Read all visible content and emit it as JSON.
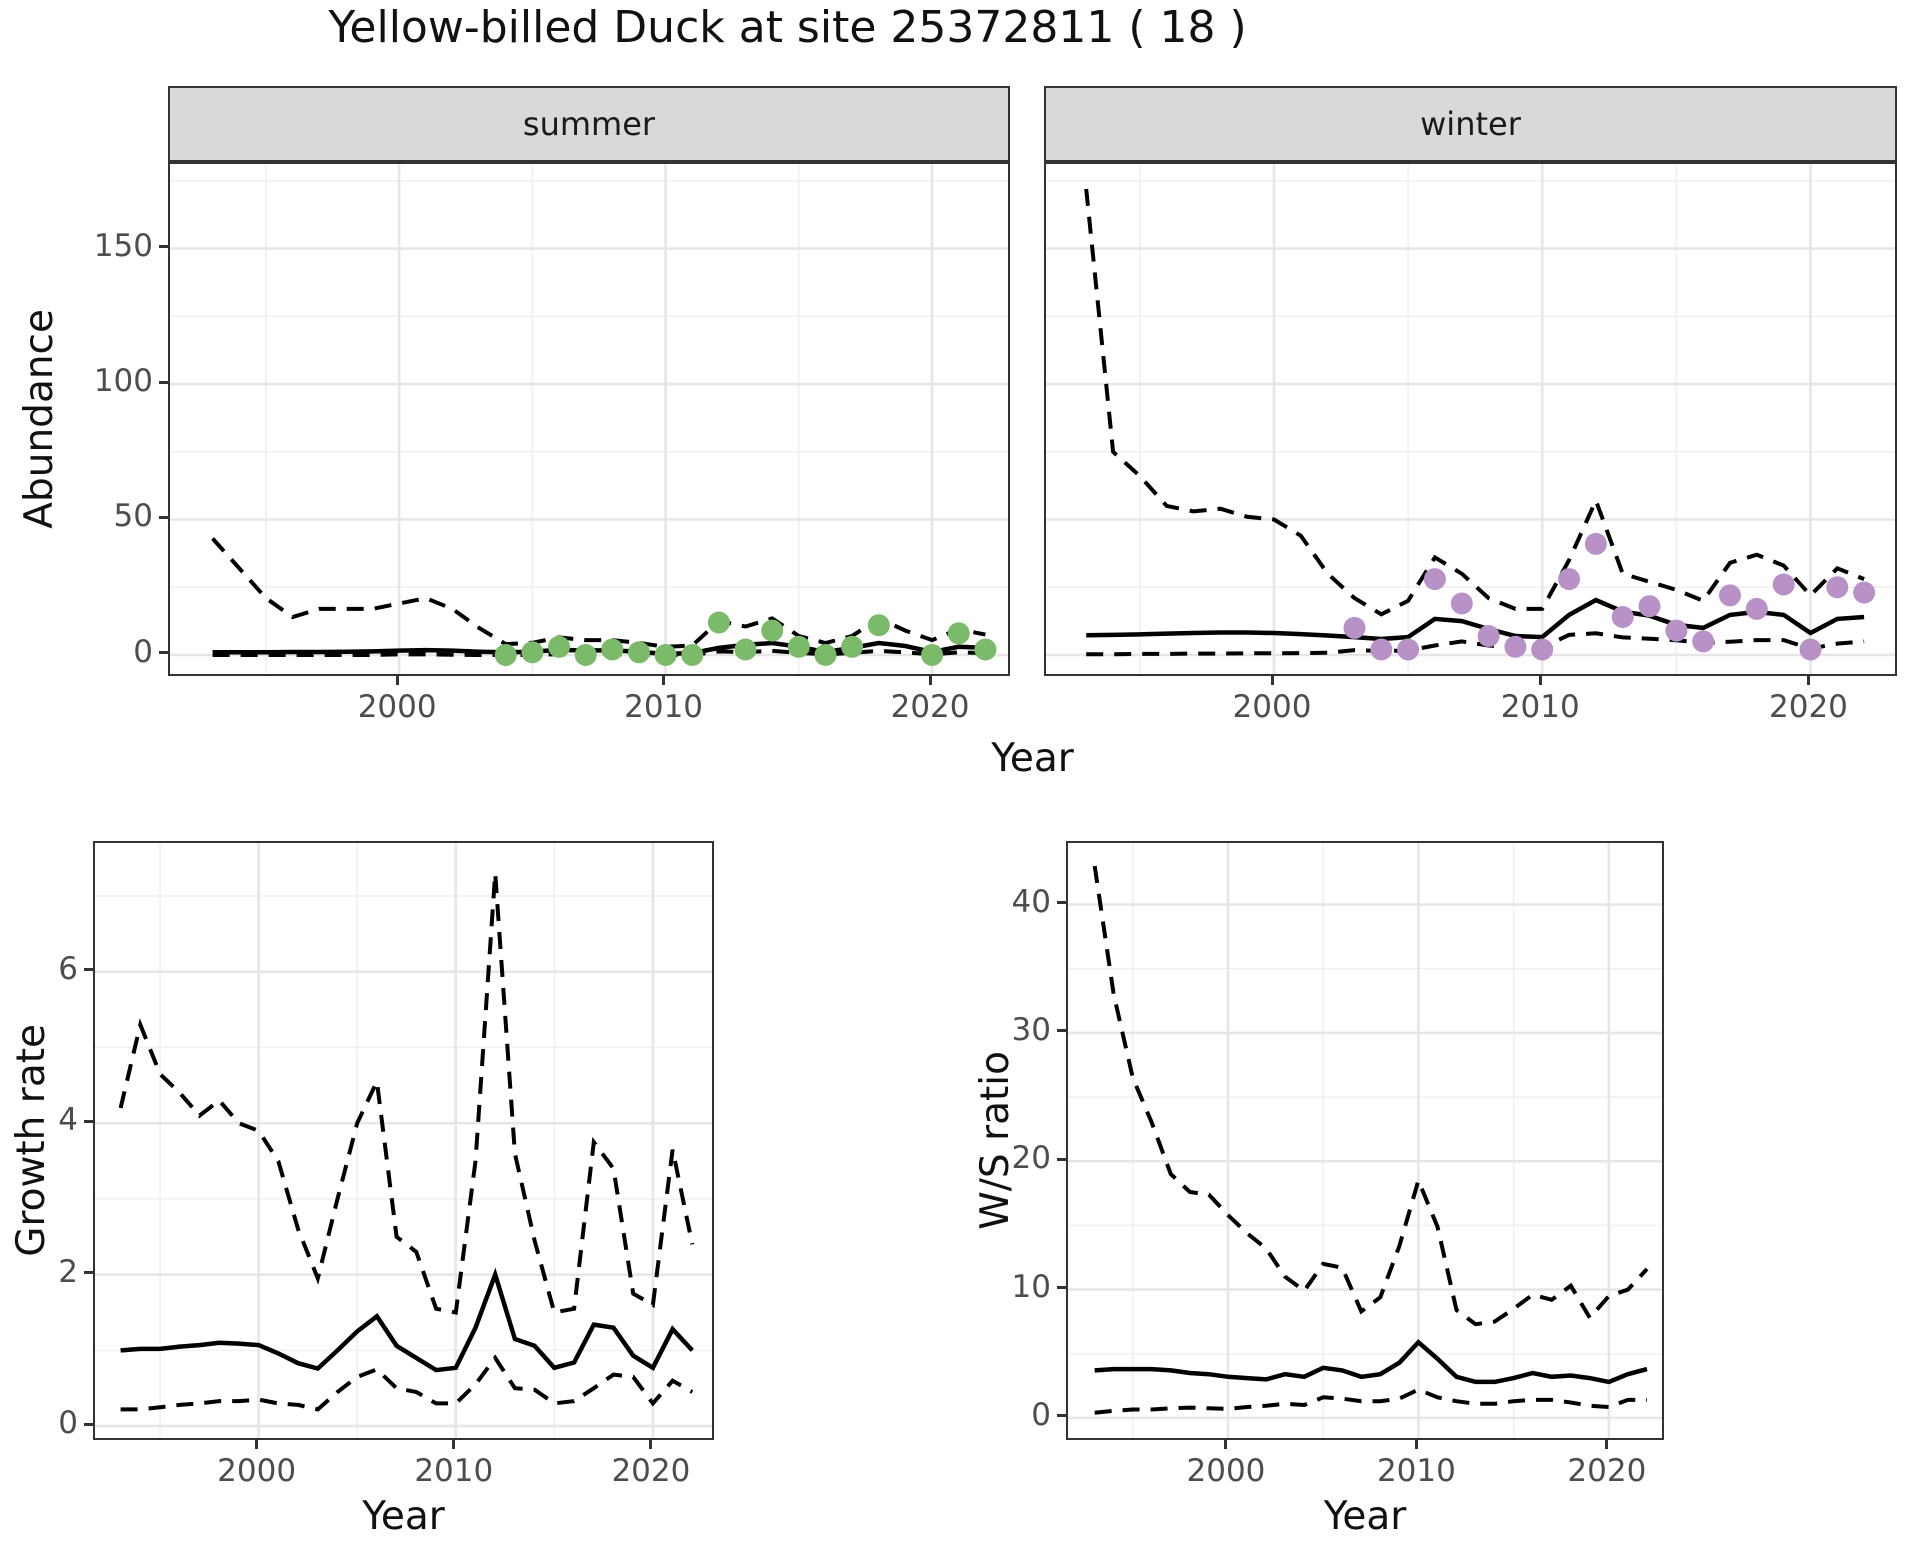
{
  "title": "Yellow-billed Duck at site 25372811 ( 18 )",
  "facets": [
    {
      "label": "summer"
    },
    {
      "label": "winter"
    }
  ],
  "labels": {
    "abundance": "Abundance",
    "growth_rate": "Growth rate",
    "ws_ratio": "W/S ratio",
    "year": "Year"
  },
  "colors": {
    "summer_points": "#7ABA68",
    "winter_points": "#B892C7",
    "median_line": "#000000",
    "ci_line": "#000000",
    "strip_bg": "#D9D9D9",
    "panel_border": "#333333",
    "grid_major": "#E6E6E6",
    "grid_minor": "#F0F0F0",
    "axis_text": "#4D4D4D"
  },
  "chart_data": [
    {
      "id": "abundance-summer",
      "type": "line",
      "facet": "summer",
      "title": "",
      "xlabel": "Year",
      "ylabel": "Abundance",
      "xlim": [
        1991.4,
        2023.0
      ],
      "ylim": [
        -8.5,
        181.2
      ],
      "xticks": [
        2000,
        2010,
        2020
      ],
      "yticks": [
        0,
        50,
        100,
        150
      ],
      "xminor": [
        1995,
        2005,
        2015
      ],
      "yminor": [
        25,
        75,
        125,
        175
      ],
      "show_yticks": true,
      "point_color": "#7ABA68",
      "x": [
        1993,
        1994,
        1995,
        1996,
        1997,
        1998,
        1999,
        2000,
        2001,
        2002,
        2003,
        2004,
        2005,
        2006,
        2007,
        2008,
        2009,
        2010,
        2011,
        2012,
        2013,
        2014,
        2015,
        2016,
        2017,
        2018,
        2019,
        2020,
        2021,
        2022
      ],
      "series": [
        {
          "name": "median",
          "style": "solid",
          "values": [
            1.0,
            1.0,
            1.0,
            1.1,
            1.1,
            1.2,
            1.3,
            1.6,
            1.8,
            1.6,
            1.2,
            1.0,
            1.2,
            1.9,
            1.6,
            1.8,
            1.1,
            0.4,
            0.7,
            2.6,
            3.7,
            4.4,
            3.0,
            1.1,
            2.6,
            4.4,
            3.3,
            1.1,
            3.0,
            2.6
          ]
        },
        {
          "name": "upper95",
          "style": "dashed",
          "values": [
            43,
            32,
            21,
            14,
            17,
            17,
            17,
            19,
            21,
            17,
            10,
            4,
            4.5,
            6.5,
            5.5,
            5.5,
            4.4,
            3,
            3.5,
            12.5,
            10.5,
            13.5,
            7,
            4.4,
            7,
            13.5,
            9,
            5.5,
            9.5,
            7.5
          ]
        },
        {
          "name": "lower95",
          "style": "dashed",
          "values": [
            0,
            0,
            0,
            0,
            0,
            0,
            0,
            0.2,
            0.2,
            0.1,
            0,
            0,
            0,
            0.3,
            0.2,
            0.3,
            0.1,
            0,
            0,
            1.3,
            1.1,
            1.5,
            0.8,
            0.2,
            0.8,
            1.5,
            1.0,
            0.2,
            1.0,
            0.7
          ]
        },
        {
          "name": "observed",
          "style": "points",
          "values": [
            null,
            null,
            null,
            null,
            null,
            null,
            null,
            null,
            null,
            null,
            null,
            0,
            1,
            3,
            0,
            2,
            1,
            0,
            0,
            12,
            2,
            9,
            3,
            0,
            3,
            11,
            null,
            0,
            8,
            2
          ]
        }
      ]
    },
    {
      "id": "abundance-winter",
      "type": "line",
      "facet": "winter",
      "title": "",
      "xlabel": "Year",
      "ylabel": "Abundance",
      "xlim": [
        1991.5,
        2023.3
      ],
      "ylim": [
        -8.5,
        181.2
      ],
      "xticks": [
        2000,
        2010,
        2020
      ],
      "yticks": [
        0,
        50,
        100,
        150
      ],
      "xminor": [
        1995,
        2005,
        2015
      ],
      "yminor": [
        25,
        75,
        125,
        175
      ],
      "show_yticks": false,
      "point_color": "#B892C7",
      "x": [
        1993,
        1994,
        1995,
        1996,
        1997,
        1998,
        1999,
        2000,
        2001,
        2002,
        2003,
        2004,
        2005,
        2006,
        2007,
        2008,
        2009,
        2010,
        2011,
        2012,
        2013,
        2014,
        2015,
        2016,
        2017,
        2018,
        2019,
        2020,
        2021,
        2022
      ],
      "series": [
        {
          "name": "median",
          "style": "solid",
          "values": [
            7.3,
            7.4,
            7.6,
            7.9,
            8.1,
            8.3,
            8.3,
            8.1,
            7.7,
            7.2,
            6.6,
            5.9,
            6.6,
            13.3,
            12.5,
            9.6,
            7.0,
            6.6,
            14.8,
            20.3,
            16.0,
            14.5,
            11.1,
            10.0,
            14.8,
            15.9,
            14.8,
            8.1,
            13.3,
            14.0
          ]
        },
        {
          "name": "upper95",
          "style": "dashed",
          "values": [
            172,
            75,
            66,
            55,
            53,
            54,
            51,
            50,
            44,
            30,
            21,
            15,
            20,
            36,
            30,
            21,
            17,
            17,
            35,
            57,
            30,
            27,
            24,
            20,
            34,
            37,
            33,
            22,
            32,
            28
          ]
        },
        {
          "name": "lower95",
          "style": "dashed",
          "values": [
            0.3,
            0.3,
            0.4,
            0.4,
            0.5,
            0.5,
            0.6,
            0.6,
            0.7,
            0.8,
            1.8,
            1.5,
            1.6,
            3.5,
            5.0,
            3.5,
            2.8,
            2.8,
            7.4,
            8.0,
            6.5,
            6.0,
            5.4,
            4.5,
            4.9,
            5.5,
            5.5,
            2.3,
            4.2,
            5.0
          ]
        },
        {
          "name": "observed",
          "style": "points",
          "values": [
            null,
            null,
            null,
            null,
            null,
            null,
            null,
            null,
            null,
            null,
            10,
            2,
            2,
            28,
            19,
            7,
            3,
            2,
            28,
            41,
            14,
            18,
            9,
            5,
            22,
            17,
            26,
            2,
            25,
            23
          ]
        }
      ]
    },
    {
      "id": "growth-rate",
      "type": "line",
      "facet": "",
      "title": "",
      "xlabel": "Year",
      "ylabel": "Growth rate",
      "xlim": [
        1991.7,
        2023.2
      ],
      "ylim": [
        -0.21,
        7.7
      ],
      "xticks": [
        2000,
        2010,
        2020
      ],
      "yticks": [
        0,
        2,
        4,
        6
      ],
      "xminor": [
        1995,
        2005,
        2015
      ],
      "yminor": [
        1,
        3,
        5,
        7
      ],
      "show_yticks": true,
      "point_color": null,
      "x": [
        1993,
        1994,
        1995,
        1996,
        1997,
        1998,
        1999,
        2000,
        2001,
        2002,
        2003,
        2004,
        2005,
        2006,
        2007,
        2008,
        2009,
        2010,
        2011,
        2012,
        2013,
        2014,
        2015,
        2016,
        2017,
        2018,
        2019,
        2020,
        2021,
        2022
      ],
      "series": [
        {
          "name": "median",
          "style": "solid",
          "values": [
            1.0,
            1.02,
            1.02,
            1.05,
            1.07,
            1.1,
            1.09,
            1.07,
            0.96,
            0.83,
            0.76,
            1.0,
            1.25,
            1.45,
            1.06,
            0.9,
            0.74,
            0.77,
            1.3,
            2.0,
            1.15,
            1.06,
            0.77,
            0.84,
            1.34,
            1.3,
            0.93,
            0.77,
            1.28,
            1.0
          ]
        },
        {
          "name": "upper95",
          "style": "dashed",
          "values": [
            4.2,
            5.3,
            4.65,
            4.4,
            4.1,
            4.3,
            4.0,
            3.9,
            3.5,
            2.6,
            1.95,
            3.0,
            4.0,
            4.55,
            2.5,
            2.3,
            1.55,
            1.5,
            3.5,
            7.3,
            3.6,
            2.45,
            1.5,
            1.55,
            3.75,
            3.4,
            1.75,
            1.6,
            3.65,
            2.4
          ]
        },
        {
          "name": "lower95",
          "style": "dashed",
          "values": [
            0.22,
            0.22,
            0.25,
            0.28,
            0.3,
            0.33,
            0.33,
            0.35,
            0.3,
            0.28,
            0.22,
            0.45,
            0.65,
            0.75,
            0.5,
            0.45,
            0.3,
            0.3,
            0.55,
            0.9,
            0.5,
            0.48,
            0.3,
            0.33,
            0.5,
            0.68,
            0.65,
            0.3,
            0.6,
            0.45
          ]
        }
      ]
    },
    {
      "id": "ws-ratio",
      "type": "line",
      "facet": "",
      "title": "",
      "xlabel": "Year",
      "ylabel": "W/S ratio",
      "xlim": [
        1991.6,
        2023.0
      ],
      "ylim": [
        -1.88,
        44.8
      ],
      "xticks": [
        2000,
        2010,
        2020
      ],
      "yticks": [
        0,
        10,
        20,
        30,
        40
      ],
      "xminor": [
        1995,
        2005,
        2015
      ],
      "yminor": [
        5,
        15,
        25,
        35
      ],
      "show_yticks": true,
      "point_color": null,
      "x": [
        1993,
        1994,
        1995,
        1996,
        1997,
        1998,
        1999,
        2000,
        2001,
        2002,
        2003,
        2004,
        2005,
        2006,
        2007,
        2008,
        2009,
        2010,
        2011,
        2012,
        2013,
        2014,
        2015,
        2016,
        2017,
        2018,
        2019,
        2020,
        2021,
        2022
      ],
      "series": [
        {
          "name": "median",
          "style": "solid",
          "values": [
            3.7,
            3.8,
            3.8,
            3.8,
            3.7,
            3.5,
            3.4,
            3.2,
            3.1,
            3.0,
            3.4,
            3.2,
            3.9,
            3.7,
            3.2,
            3.4,
            4.3,
            5.9,
            4.6,
            3.2,
            2.8,
            2.8,
            3.1,
            3.5,
            3.2,
            3.3,
            3.1,
            2.8,
            3.4,
            3.8
          ]
        },
        {
          "name": "upper95",
          "style": "dashed",
          "values": [
            43,
            33,
            26.5,
            23,
            19,
            17.6,
            17.4,
            15.8,
            14.4,
            13.2,
            11.0,
            9.9,
            12.0,
            11.7,
            8.3,
            9.4,
            13.4,
            18.5,
            14.9,
            8.4,
            7.3,
            7.5,
            8.5,
            9.6,
            9.2,
            10.3,
            7.8,
            9.5,
            10.0,
            11.6
          ]
        },
        {
          "name": "lower95",
          "style": "dashed",
          "values": [
            0.4,
            0.55,
            0.65,
            0.65,
            0.75,
            0.8,
            0.75,
            0.7,
            0.85,
            0.95,
            1.1,
            1.0,
            1.6,
            1.5,
            1.3,
            1.3,
            1.5,
            2.2,
            1.6,
            1.3,
            1.1,
            1.1,
            1.3,
            1.4,
            1.4,
            1.2,
            0.95,
            0.85,
            1.4,
            1.4
          ]
        }
      ]
    }
  ]
}
